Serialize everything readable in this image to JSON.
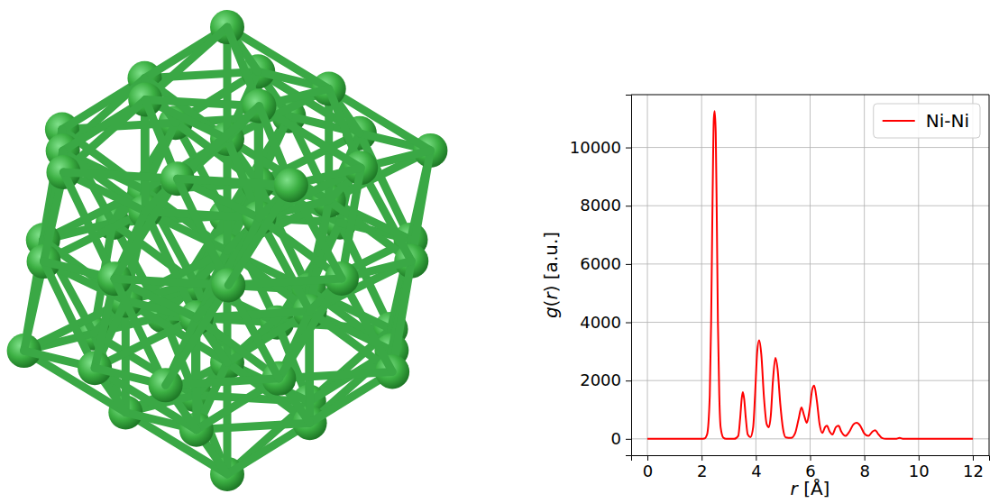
{
  "chart_data": {
    "type": "line",
    "xlabel": "r [Å]",
    "ylabel": "g(r) [a.u.]",
    "x": [
      0,
      2.0,
      2.1,
      2.2,
      2.3,
      2.35,
      2.4,
      2.45,
      2.48,
      2.52,
      2.56,
      2.6,
      2.65,
      2.7,
      2.8,
      2.9,
      3.2,
      3.35,
      3.42,
      3.48,
      3.52,
      3.57,
      3.63,
      3.7,
      3.8,
      3.9,
      3.97,
      4.05,
      4.12,
      4.2,
      4.3,
      4.4,
      4.48,
      4.55,
      4.63,
      4.72,
      4.8,
      4.9,
      5.0,
      5.1,
      5.3,
      5.45,
      5.58,
      5.68,
      5.78,
      5.88,
      5.98,
      6.08,
      6.15,
      6.25,
      6.35,
      6.45,
      6.55,
      6.62,
      6.72,
      6.82,
      6.95,
      7.05,
      7.15,
      7.3,
      7.45,
      7.6,
      7.72,
      7.85,
      8.0,
      8.15,
      8.3,
      8.4,
      8.5,
      8.65,
      8.8,
      9.15,
      9.3,
      9.45,
      10,
      11,
      12
    ],
    "series": [
      {
        "name": "Ni-Ni",
        "color": "#ff0000",
        "values": [
          0,
          0,
          10,
          150,
          1500,
          4000,
          8000,
          11000,
          11250,
          10500,
          7500,
          4000,
          1500,
          400,
          40,
          0,
          0,
          100,
          700,
          1400,
          1600,
          1350,
          700,
          150,
          60,
          400,
          1500,
          3000,
          3380,
          2900,
          1400,
          500,
          400,
          800,
          2000,
          2780,
          2400,
          1200,
          350,
          50,
          30,
          200,
          700,
          1080,
          800,
          550,
          1000,
          1700,
          1830,
          1300,
          500,
          200,
          400,
          450,
          250,
          150,
          400,
          450,
          250,
          100,
          250,
          500,
          550,
          450,
          180,
          100,
          250,
          300,
          180,
          30,
          0,
          0,
          30,
          0,
          0,
          0,
          0
        ]
      }
    ],
    "xlim": [
      -0.6,
      12.6
    ],
    "ylim": [
      -562,
      11812
    ],
    "xticks": [
      0,
      2,
      4,
      6,
      8,
      10,
      12
    ],
    "yticks": [
      0,
      2000,
      4000,
      6000,
      8000,
      10000
    ],
    "grid": true,
    "legend": "upper right"
  }
}
